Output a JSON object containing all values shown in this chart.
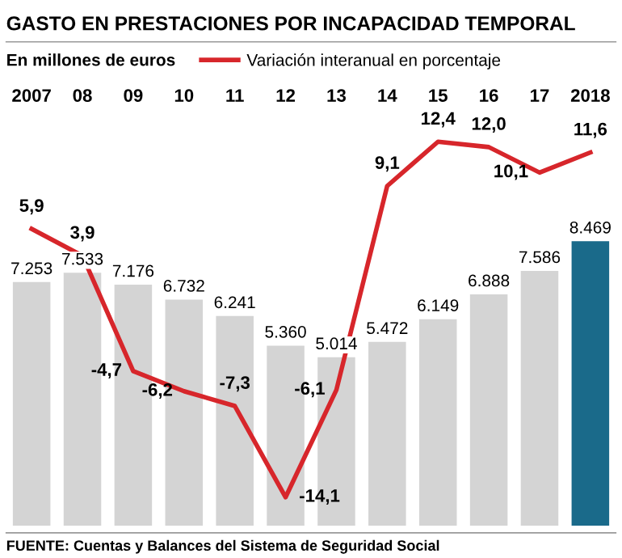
{
  "chart_data": {
    "type": "bar",
    "title": "GASTO EN PRESTACIONES POR INCAPACIDAD TEMPORAL",
    "subtitle": "En millones de euros",
    "categories": [
      "2007",
      "08",
      "09",
      "10",
      "11",
      "12",
      "13",
      "14",
      "15",
      "16",
      "17",
      "2018"
    ],
    "series": [
      {
        "colors": [
          "#d4d4d4",
          "#d4d4d4",
          "#d4d4d4",
          "#d4d4d4",
          "#d4d4d4",
          "#d4d4d4",
          "#d4d4d4",
          "#d4d4d4",
          "#d4d4d4",
          "#d4d4d4",
          "#d4d4d4",
          "#1a6a8a"
        ],
        "values": [
          7253,
          7533,
          7176,
          6732,
          6241,
          5360,
          5014,
          5472,
          6149,
          6888,
          7586,
          8469
        ],
        "value_labels": [
          "7.253",
          "7.533",
          "7.176",
          "6.732",
          "6.241",
          "5.360",
          "5.014",
          "5.472",
          "6.149",
          "6.888",
          "7.586",
          "8.469"
        ]
      },
      {
        "type": "line",
        "axis": "y2",
        "name": "Variación interanual en porcentaje",
        "color": "#d7262b",
        "values": [
          5.9,
          3.9,
          -4.7,
          -6.2,
          -7.3,
          -14.1,
          -6.1,
          9.1,
          12.4,
          12.0,
          10.1,
          11.6
        ],
        "value_labels": [
          "5,9",
          "3,9",
          "-4,7",
          "-6,2",
          "-7,3",
          "-14,1",
          "-6,1",
          "9,1",
          "12,4",
          "12,0",
          "10,1",
          "11,6"
        ]
      }
    ],
    "tick_labels": "x",
    "grid": false,
    "legend": "top",
    "annotations": [
      "FUENTE: Cuentas y Balances del Sistema de Seguridad Social"
    ]
  }
}
